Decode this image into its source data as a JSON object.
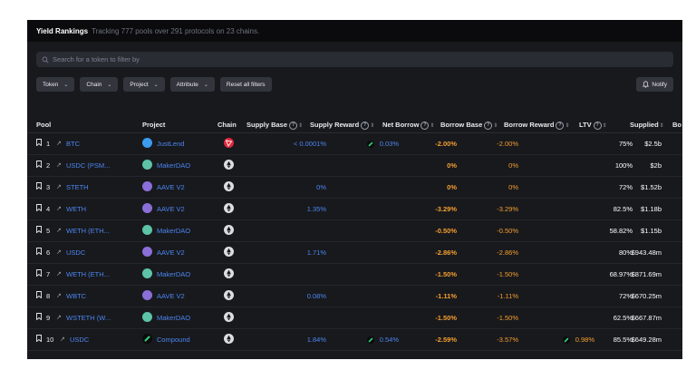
{
  "header": {
    "title": "Yield Rankings",
    "subtitle": "Tracking 777 pools over 291 protocols on 23 chains."
  },
  "search": {
    "placeholder": "Search for a token to filter by"
  },
  "filters": [
    {
      "label": "Token"
    },
    {
      "label": "Chain"
    },
    {
      "label": "Project"
    },
    {
      "label": "Attribute"
    }
  ],
  "reset_label": "Reset all filters",
  "notify_label": "Notify",
  "columns": {
    "pool": "Pool",
    "project": "Project",
    "chain": "Chain",
    "supply_base": "Supply Base",
    "supply_reward": "Supply Reward",
    "net_borrow": "Net Borrow",
    "borrow_base": "Borrow Base",
    "borrow_reward": "Borrow Reward",
    "ltv": "LTV",
    "supplied": "Supplied",
    "extra": "Bo"
  },
  "colors": {
    "justlend": "#3b9cf0",
    "makerdao": "#5cc3a7",
    "aave": "#8a6fd8",
    "compound": "#0b0b0d",
    "tron": "#e3273d",
    "eth": "#dcdde2"
  },
  "rows": [
    {
      "rank": "1",
      "symbol": "BTC",
      "project": "JustLend",
      "logo": "justlend",
      "chain": "tron",
      "supply_base": "< 0.0001%",
      "supply_reward": "0.03%",
      "net_borrow": "-2.00%",
      "borrow_base": "-2.00%",
      "borrow_reward": "",
      "ltv": "75%",
      "supplied": "$2.5b"
    },
    {
      "rank": "2",
      "symbol": "USDC (PSM...",
      "project": "MakerDAO",
      "logo": "makerdao",
      "chain": "eth",
      "supply_base": "",
      "supply_reward": "",
      "net_borrow": "0%",
      "borrow_base": "0%",
      "borrow_reward": "",
      "ltv": "100%",
      "supplied": "$2b"
    },
    {
      "rank": "3",
      "symbol": "STETH",
      "project": "AAVE V2",
      "logo": "aave",
      "chain": "eth",
      "supply_base": "0%",
      "supply_reward": "",
      "net_borrow": "0%",
      "borrow_base": "0%",
      "borrow_reward": "",
      "ltv": "72%",
      "supplied": "$1.52b"
    },
    {
      "rank": "4",
      "symbol": "WETH",
      "project": "AAVE V2",
      "logo": "aave",
      "chain": "eth",
      "supply_base": "1.35%",
      "supply_reward": "",
      "net_borrow": "-3.29%",
      "borrow_base": "-3.29%",
      "borrow_reward": "",
      "ltv": "82.5%",
      "supplied": "$1.18b"
    },
    {
      "rank": "5",
      "symbol": "WETH (ETH...",
      "project": "MakerDAO",
      "logo": "makerdao",
      "chain": "eth",
      "supply_base": "",
      "supply_reward": "",
      "net_borrow": "-0.50%",
      "borrow_base": "-0.50%",
      "borrow_reward": "",
      "ltv": "58.82%",
      "supplied": "$1.15b"
    },
    {
      "rank": "6",
      "symbol": "USDC",
      "project": "AAVE V2",
      "logo": "aave",
      "chain": "eth",
      "supply_base": "1.71%",
      "supply_reward": "",
      "net_borrow": "-2.86%",
      "borrow_base": "-2.86%",
      "borrow_reward": "",
      "ltv": "80%",
      "supplied": "$943.48m"
    },
    {
      "rank": "7",
      "symbol": "WETH (ETH...",
      "project": "MakerDAO",
      "logo": "makerdao",
      "chain": "eth",
      "supply_base": "",
      "supply_reward": "",
      "net_borrow": "-1.50%",
      "borrow_base": "-1.50%",
      "borrow_reward": "",
      "ltv": "68.97%",
      "supplied": "$871.69m"
    },
    {
      "rank": "8",
      "symbol": "WBTC",
      "project": "AAVE V2",
      "logo": "aave",
      "chain": "eth",
      "supply_base": "0.08%",
      "supply_reward": "",
      "net_borrow": "-1.11%",
      "borrow_base": "-1.11%",
      "borrow_reward": "",
      "ltv": "72%",
      "supplied": "$670.25m"
    },
    {
      "rank": "9",
      "symbol": "WSTETH (W...",
      "project": "MakerDAO",
      "logo": "makerdao",
      "chain": "eth",
      "supply_base": "",
      "supply_reward": "",
      "net_borrow": "-1.50%",
      "borrow_base": "-1.50%",
      "borrow_reward": "",
      "ltv": "62.5%",
      "supplied": "$667.87m"
    },
    {
      "rank": "10",
      "symbol": "USDC",
      "project": "Compound",
      "logo": "compound",
      "chain": "eth",
      "supply_base": "1.84%",
      "supply_reward": "0.54%",
      "net_borrow": "-2.59%",
      "borrow_base": "-3.57%",
      "borrow_reward": "0.98%",
      "ltv": "85.5%",
      "supplied": "$649.28m"
    }
  ]
}
